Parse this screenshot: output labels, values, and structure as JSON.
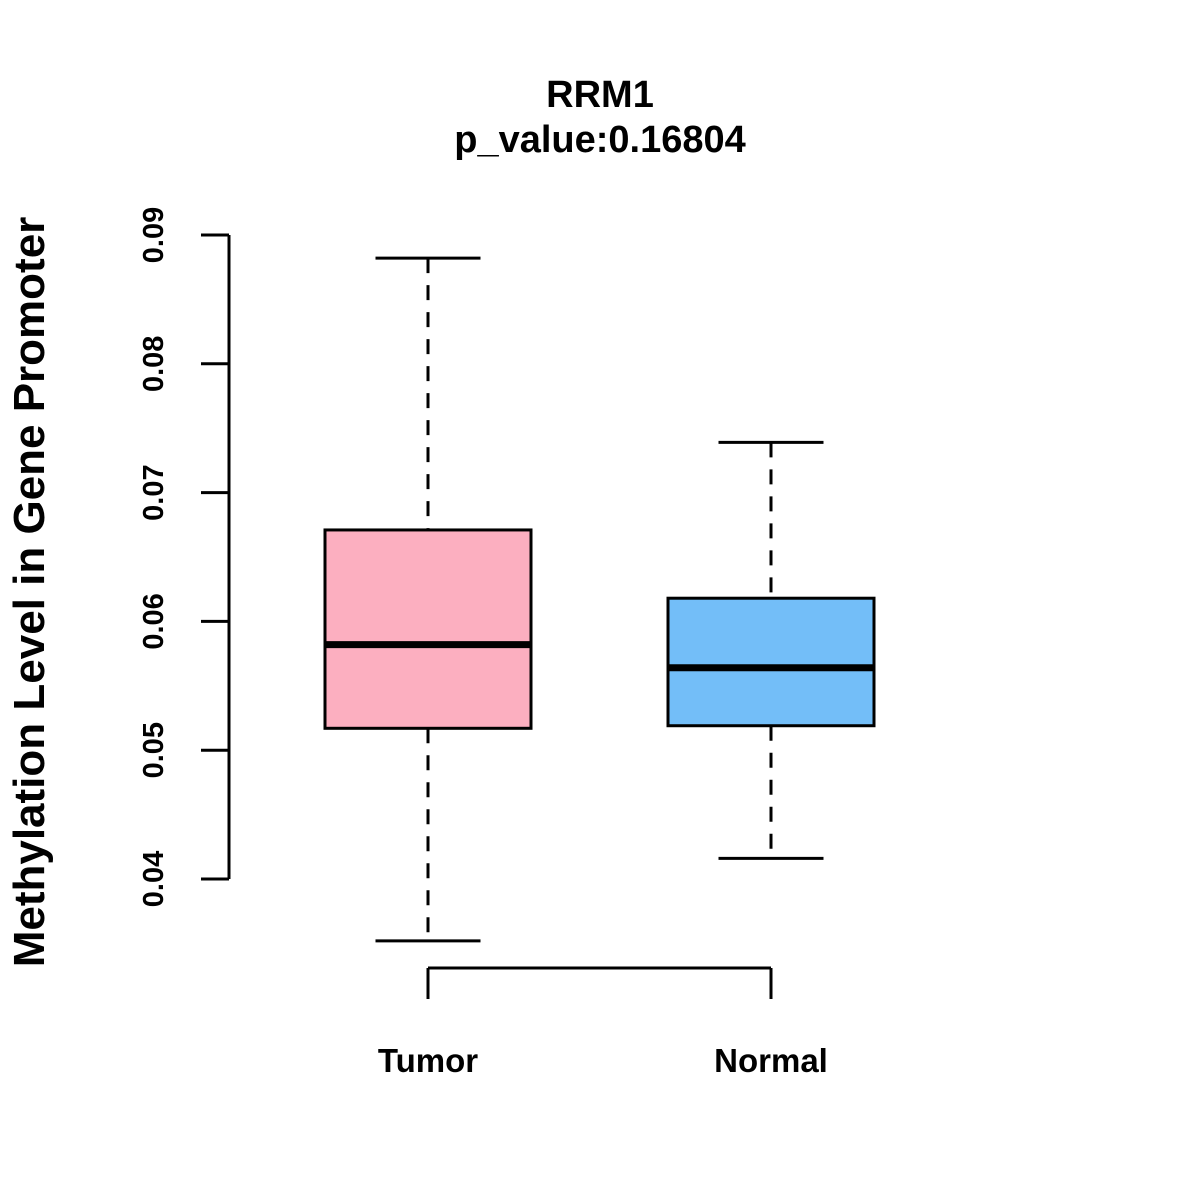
{
  "figure": {
    "title": "RRM1",
    "subtitle": "p_value:0.16804",
    "ylabel": "Methylation Level in Gene Promoter"
  },
  "chart_data": {
    "type": "boxplot",
    "title": "RRM1",
    "subtitle": "p_value:0.16804",
    "ylabel": "Methylation Level in Gene Promoter",
    "xlabel": "",
    "categories": [
      "Tumor",
      "Normal"
    ],
    "series": [
      {
        "name": "Tumor",
        "fill_color": "#FCAFC0",
        "whisker_low": 0.0352,
        "q1": 0.0517,
        "median": 0.0582,
        "q3": 0.0671,
        "whisker_high": 0.0882,
        "outliers": []
      },
      {
        "name": "Normal",
        "fill_color": "#73BEF8",
        "whisker_low": 0.0416,
        "q1": 0.0519,
        "median": 0.0564,
        "q3": 0.0618,
        "whisker_high": 0.0739,
        "outliers": []
      }
    ],
    "ylim": [
      0.04,
      0.09
    ],
    "yticks": [
      0.04,
      0.05,
      0.06,
      0.07,
      0.08,
      0.09
    ],
    "ytick_labels": [
      "0.04",
      "0.05",
      "0.06",
      "0.07",
      "0.08",
      "0.09"
    ],
    "grid": false,
    "legend": "none",
    "axis_color": "#000000",
    "box_border_color": "#000000",
    "median_color": "#000000",
    "whisker_style": "dashed"
  }
}
